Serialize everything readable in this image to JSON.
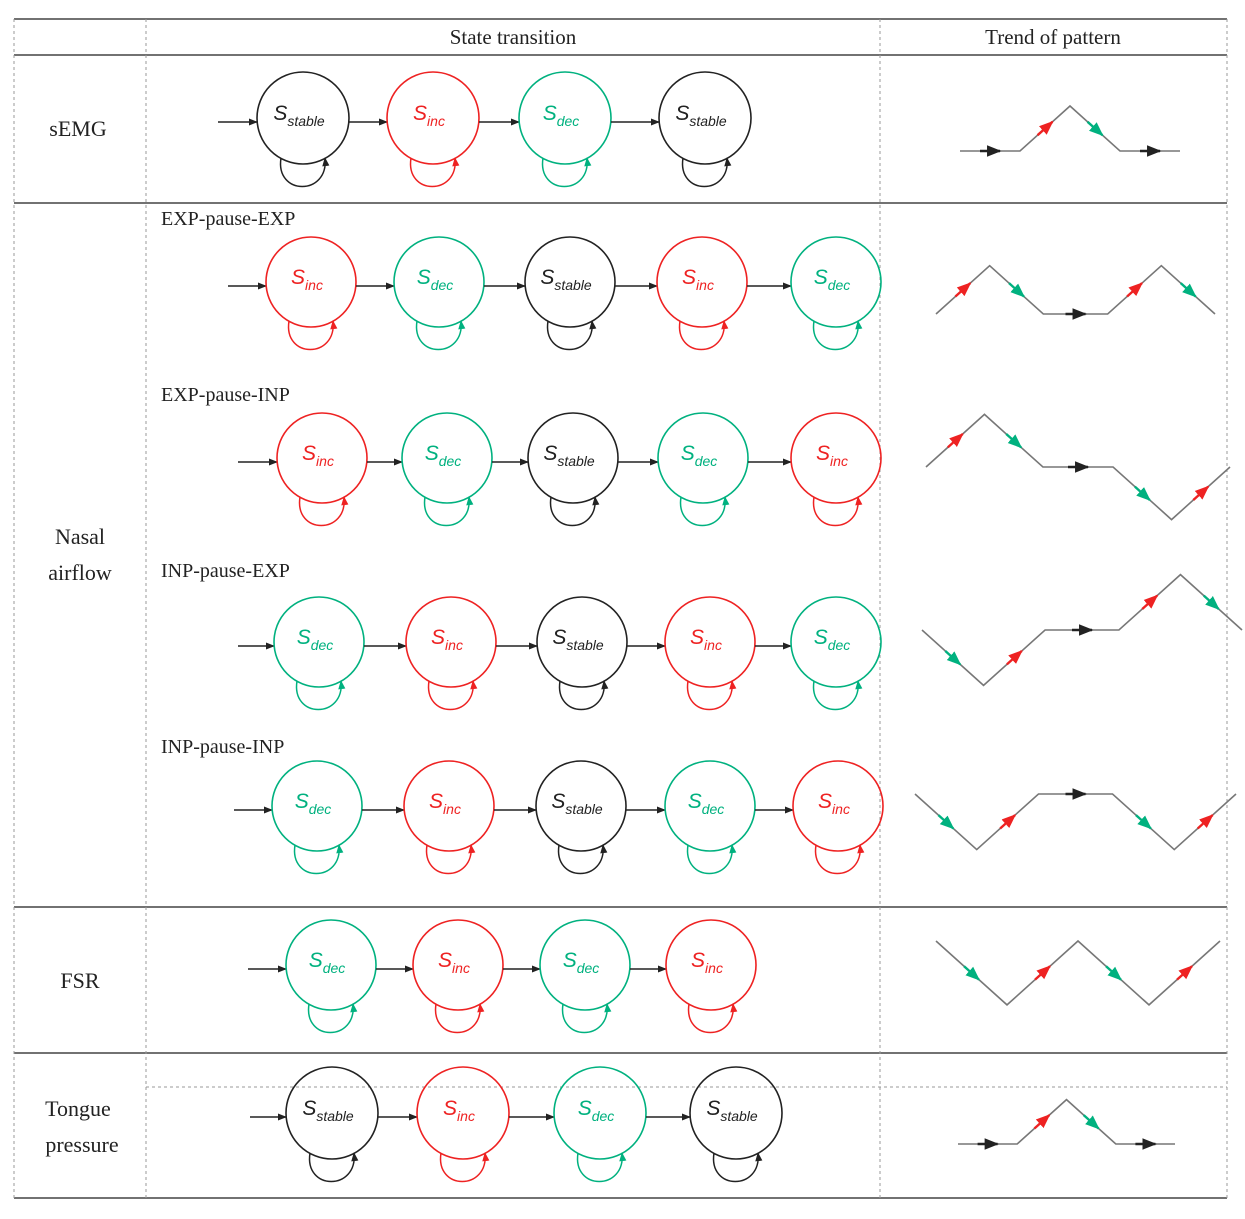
{
  "colors": {
    "stable": "#222222",
    "inc": "#ee2222",
    "dec": "#00b17f",
    "trend_line": "#777777",
    "border": "#444444",
    "dashed": "#999999"
  },
  "header": {
    "state_transition": "State transition",
    "trend_of_pattern": "Trend of pattern"
  },
  "symbols": {
    "S": "S",
    "stable": "stable",
    "inc": "inc",
    "dec": "dec"
  },
  "rows": [
    {
      "label_lines": [
        "sEMG"
      ],
      "groups": [
        {
          "title": "",
          "states": [
            "stable",
            "inc",
            "dec",
            "stable"
          ],
          "trend": [
            "stable",
            "inc",
            "dec",
            "stable"
          ]
        }
      ]
    },
    {
      "label_lines": [
        "Nasal",
        "airflow"
      ],
      "groups": [
        {
          "title": "EXP-pause-EXP",
          "states": [
            "inc",
            "dec",
            "stable",
            "inc",
            "dec"
          ],
          "trend": [
            "inc",
            "dec",
            "stable",
            "inc",
            "dec"
          ]
        },
        {
          "title": "EXP-pause-INP",
          "states": [
            "inc",
            "dec",
            "stable",
            "dec",
            "inc"
          ],
          "trend": [
            "inc",
            "dec",
            "stable",
            "dec",
            "inc"
          ]
        },
        {
          "title": "INP-pause-EXP",
          "states": [
            "dec",
            "inc",
            "stable",
            "inc",
            "dec"
          ],
          "trend": [
            "dec",
            "inc",
            "stable",
            "inc",
            "dec"
          ]
        },
        {
          "title": "INP-pause-INP",
          "states": [
            "dec",
            "inc",
            "stable",
            "dec",
            "inc"
          ],
          "trend": [
            "dec",
            "inc",
            "stable",
            "dec",
            "inc"
          ]
        }
      ]
    },
    {
      "label_lines": [
        "FSR"
      ],
      "groups": [
        {
          "title": "",
          "states": [
            "dec",
            "inc",
            "dec",
            "inc"
          ],
          "trend": [
            "dec",
            "inc",
            "dec",
            "inc"
          ]
        }
      ]
    },
    {
      "label_lines": [
        "Tongue",
        "pressure"
      ],
      "groups": [
        {
          "title": "",
          "states": [
            "stable",
            "inc",
            "dec",
            "stable"
          ],
          "trend": [
            "stable",
            "inc",
            "dec",
            "stable"
          ]
        }
      ]
    }
  ]
}
